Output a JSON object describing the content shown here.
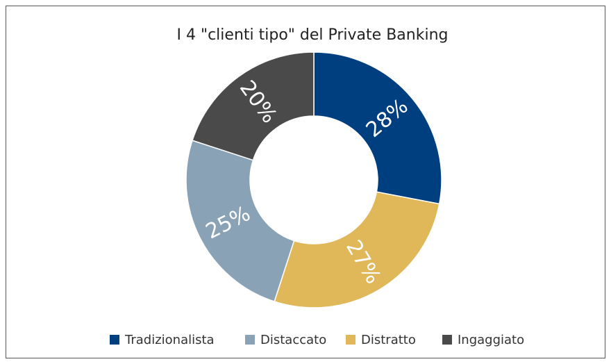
{
  "chart_data": {
    "type": "donut",
    "title": "I 4 \"clienti tipo\" del Private Banking",
    "categories": [
      "Tradizionalista",
      "Distaccato",
      "Distratto",
      "Ingaggiato"
    ],
    "values": [
      28,
      25,
      27,
      20
    ],
    "value_labels": [
      "28%",
      "25%",
      "27%",
      "20%"
    ],
    "colors": [
      "#003f7f",
      "#8aa2b5",
      "#e0b85a",
      "#4a4a4a"
    ],
    "legend": "bottom"
  }
}
